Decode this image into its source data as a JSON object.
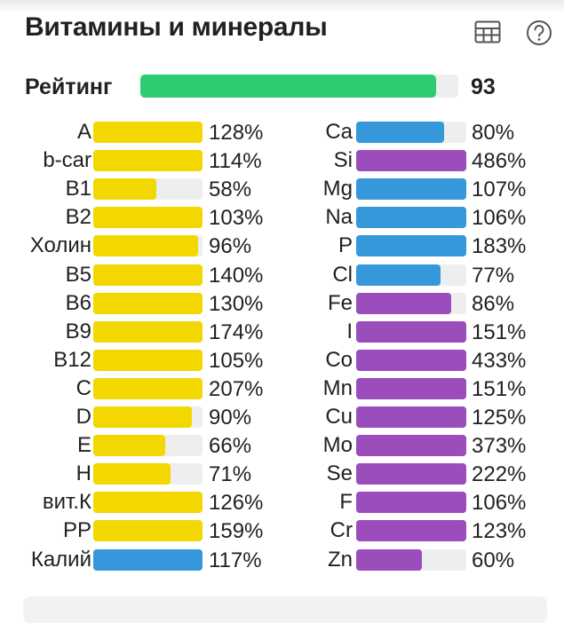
{
  "header": {
    "title": "Витамины и минералы",
    "table_icon": "table-icon",
    "help_icon": "help-icon"
  },
  "rating": {
    "label": "Рейтинг",
    "value": "93",
    "fraction": 0.93,
    "color": "#2ecc71"
  },
  "colors": {
    "vitamin": "#f2d800",
    "mineral_blue": "#3498db",
    "mineral_purple": "#9b4dbc",
    "track": "#eeeeee"
  },
  "vitamins": [
    {
      "name": "A",
      "value": "128%",
      "fill": 1.0,
      "color": "#f2d800"
    },
    {
      "name": "b-car",
      "value": "114%",
      "fill": 1.0,
      "color": "#f2d800"
    },
    {
      "name": "B1",
      "value": "58%",
      "fill": 0.58,
      "color": "#f2d800"
    },
    {
      "name": "B2",
      "value": "103%",
      "fill": 1.0,
      "color": "#f2d800"
    },
    {
      "name": "Холин",
      "value": "96%",
      "fill": 0.96,
      "color": "#f2d800"
    },
    {
      "name": "B5",
      "value": "140%",
      "fill": 1.0,
      "color": "#f2d800"
    },
    {
      "name": "B6",
      "value": "130%",
      "fill": 1.0,
      "color": "#f2d800"
    },
    {
      "name": "B9",
      "value": "174%",
      "fill": 1.0,
      "color": "#f2d800"
    },
    {
      "name": "B12",
      "value": "105%",
      "fill": 1.0,
      "color": "#f2d800"
    },
    {
      "name": "C",
      "value": "207%",
      "fill": 1.0,
      "color": "#f2d800"
    },
    {
      "name": "D",
      "value": "90%",
      "fill": 0.9,
      "color": "#f2d800"
    },
    {
      "name": "E",
      "value": "66%",
      "fill": 0.66,
      "color": "#f2d800"
    },
    {
      "name": "H",
      "value": "71%",
      "fill": 0.71,
      "color": "#f2d800"
    },
    {
      "name": "вит.К",
      "value": "126%",
      "fill": 1.0,
      "color": "#f2d800"
    },
    {
      "name": "PP",
      "value": "159%",
      "fill": 1.0,
      "color": "#f2d800"
    },
    {
      "name": "Калий",
      "value": "117%",
      "fill": 1.0,
      "color": "#3498db"
    }
  ],
  "minerals": [
    {
      "name": "Ca",
      "value": "80%",
      "fill": 0.8,
      "color": "#3498db"
    },
    {
      "name": "Si",
      "value": "486%",
      "fill": 1.0,
      "color": "#9b4dbc"
    },
    {
      "name": "Mg",
      "value": "107%",
      "fill": 1.0,
      "color": "#3498db"
    },
    {
      "name": "Na",
      "value": "106%",
      "fill": 1.0,
      "color": "#3498db"
    },
    {
      "name": "P",
      "value": "183%",
      "fill": 1.0,
      "color": "#3498db"
    },
    {
      "name": "Cl",
      "value": "77%",
      "fill": 0.77,
      "color": "#3498db"
    },
    {
      "name": "Fe",
      "value": "86%",
      "fill": 0.86,
      "color": "#9b4dbc"
    },
    {
      "name": "I",
      "value": "151%",
      "fill": 1.0,
      "color": "#9b4dbc"
    },
    {
      "name": "Co",
      "value": "433%",
      "fill": 1.0,
      "color": "#9b4dbc"
    },
    {
      "name": "Mn",
      "value": "151%",
      "fill": 1.0,
      "color": "#9b4dbc"
    },
    {
      "name": "Cu",
      "value": "125%",
      "fill": 1.0,
      "color": "#9b4dbc"
    },
    {
      "name": "Mo",
      "value": "373%",
      "fill": 1.0,
      "color": "#9b4dbc"
    },
    {
      "name": "Se",
      "value": "222%",
      "fill": 1.0,
      "color": "#9b4dbc"
    },
    {
      "name": "F",
      "value": "106%",
      "fill": 1.0,
      "color": "#9b4dbc"
    },
    {
      "name": "Cr",
      "value": "123%",
      "fill": 1.0,
      "color": "#9b4dbc"
    },
    {
      "name": "Zn",
      "value": "60%",
      "fill": 0.6,
      "color": "#9b4dbc"
    }
  ]
}
